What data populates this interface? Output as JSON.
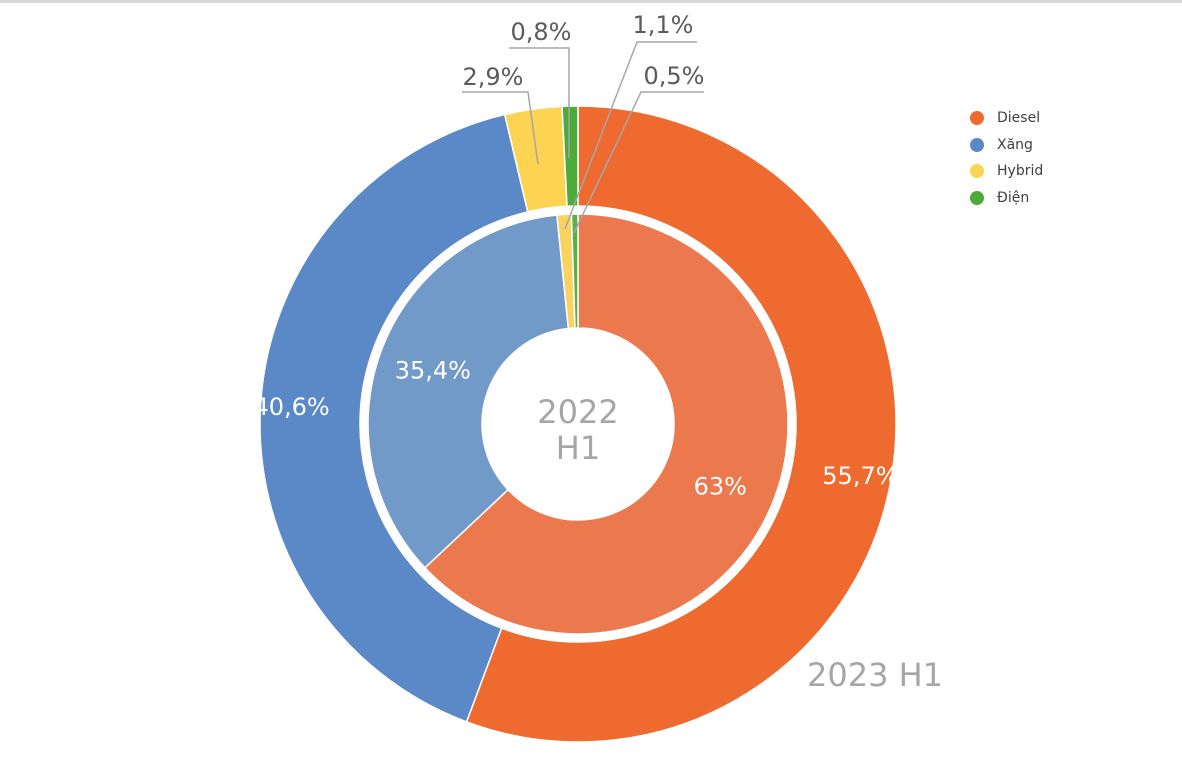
{
  "chart_data": {
    "type": "pie",
    "categories": [
      "Diesel",
      "Xăng",
      "Hybrid",
      "Điện"
    ],
    "colors": {
      "Diesel": "#ee6a2f",
      "Xăng": "#5b88c6",
      "Hybrid": "#fdd451",
      "Điện": "#4dab3a",
      "Diesel_inner": "#ec784e",
      "Xăng_inner": "#719ac9",
      "Hybrid_inner": "#f9d35f",
      "Điện_inner": "#5bb04a"
    },
    "series": [
      {
        "name": "2023 H1",
        "values": [
          55.7,
          40.6,
          2.9,
          0.8
        ],
        "labels": [
          "55,7%",
          "40,6%",
          "2,9%",
          "0,8%"
        ]
      },
      {
        "name": "2022 H1",
        "values": [
          63,
          35.4,
          1.1,
          0.5
        ],
        "labels": [
          "63%",
          "35,4%",
          "1,1%",
          "0,5%"
        ]
      }
    ],
    "inner_title": [
      "2022",
      "H1"
    ],
    "outer_title": "2023 H1",
    "legend_position": "right"
  }
}
